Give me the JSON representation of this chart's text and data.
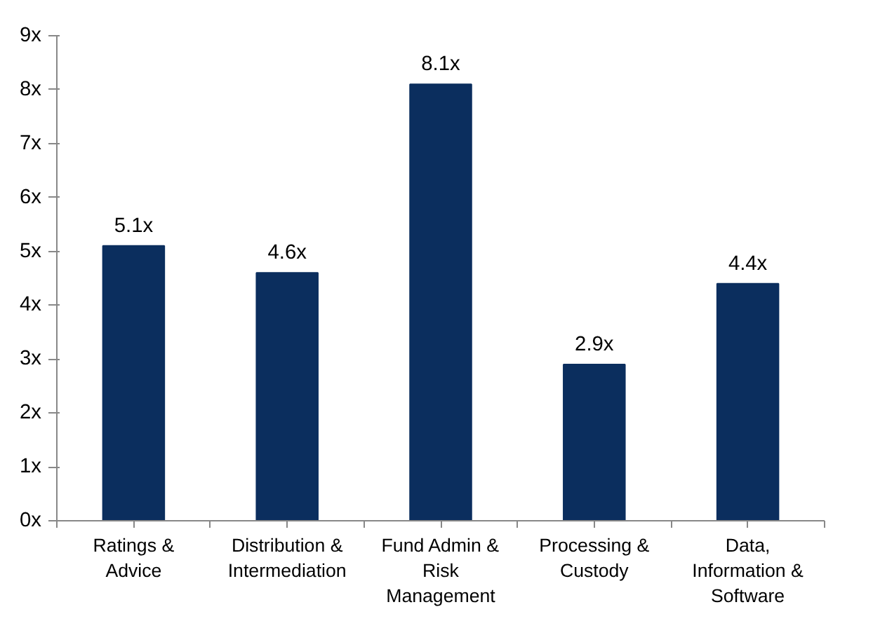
{
  "chart_data": {
    "type": "bar",
    "categories": [
      "Ratings & Advice",
      "Distribution & Intermediation",
      "Fund Admin & Risk Management",
      "Processing & Custody",
      "Data, Information & Software"
    ],
    "values": [
      5.1,
      4.6,
      8.1,
      2.9,
      4.4
    ],
    "value_labels": [
      "5.1x",
      "4.6x",
      "8.1x",
      "2.9x",
      "4.4x"
    ],
    "color": "#0b2e5e",
    "ylim": [
      0,
      9
    ],
    "yticks": [
      {
        "value": 0,
        "label": "0x"
      },
      {
        "value": 1,
        "label": "1x"
      },
      {
        "value": 2,
        "label": "2x"
      },
      {
        "value": 3,
        "label": "3x"
      },
      {
        "value": 4,
        "label": "4x"
      },
      {
        "value": 5,
        "label": "5x"
      },
      {
        "value": 6,
        "label": "6x"
      },
      {
        "value": 7,
        "label": "7x"
      },
      {
        "value": 8,
        "label": "8x"
      },
      {
        "value": 9,
        "label": "9x"
      }
    ],
    "grid": false
  }
}
